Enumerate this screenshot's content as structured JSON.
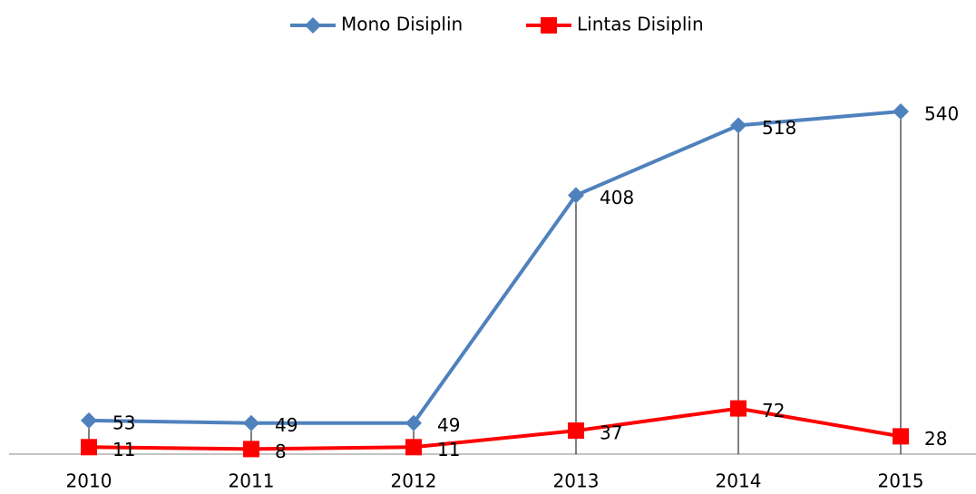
{
  "chart_data": {
    "type": "line",
    "categories": [
      "2010",
      "2011",
      "2012",
      "2013",
      "2014",
      "2015"
    ],
    "series": [
      {
        "name": "Mono Disiplin",
        "color": "#4f81bd",
        "values": [
          53,
          49,
          49,
          408,
          518,
          540
        ]
      },
      {
        "name": "Lintas Disiplin",
        "color": "#ff0000",
        "values": [
          11,
          8,
          11,
          37,
          72,
          28
        ]
      }
    ],
    "ylim": [
      0,
      600
    ],
    "legend": "top",
    "drop_lines": true
  }
}
